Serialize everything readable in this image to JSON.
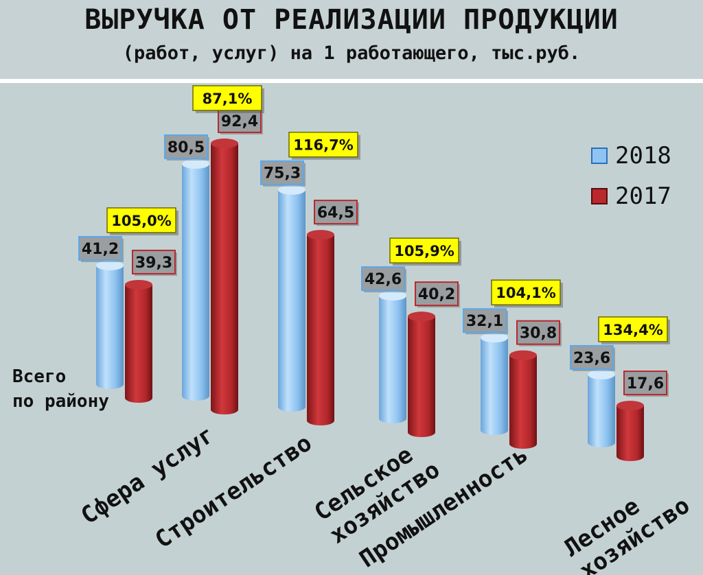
{
  "header": {
    "title": "ВЫРУЧКА ОТ РЕАЛИЗАЦИИ ПРОДУКЦИИ",
    "subtitle": "(работ, услуг) на 1 работающего, тыс.руб."
  },
  "colors": {
    "y2018": "#8fc4f2",
    "y2017": "#b8282c",
    "badge": "#ffff00"
  },
  "chart_data": {
    "type": "bar",
    "categories": [
      [
        "Всего",
        "по району"
      ],
      [
        "Сфера услуг"
      ],
      [
        "Строительство"
      ],
      [
        "Сельское",
        "хозяйство"
      ],
      [
        "Промышленность"
      ],
      [
        "Лесное",
        "хозяйство"
      ]
    ],
    "series": [
      {
        "name": "2018",
        "values": [
          41.2,
          80.5,
          75.3,
          42.6,
          32.1,
          23.6
        ],
        "labels": [
          "41,2",
          "80,5",
          "75,3",
          "42,6",
          "32,1",
          "23,6"
        ]
      },
      {
        "name": "2017",
        "values": [
          39.3,
          92.4,
          64.5,
          40.2,
          30.8,
          17.6
        ],
        "labels": [
          "39,3",
          "92,4",
          "64,5",
          "40,2",
          "30,8",
          "17,6"
        ]
      }
    ],
    "growth_percent": [
      "105,0%",
      "87,1%",
      "116,7%",
      "105,9%",
      "104,1%",
      "134,4%"
    ],
    "legend_position": "top-right",
    "grid": false
  }
}
